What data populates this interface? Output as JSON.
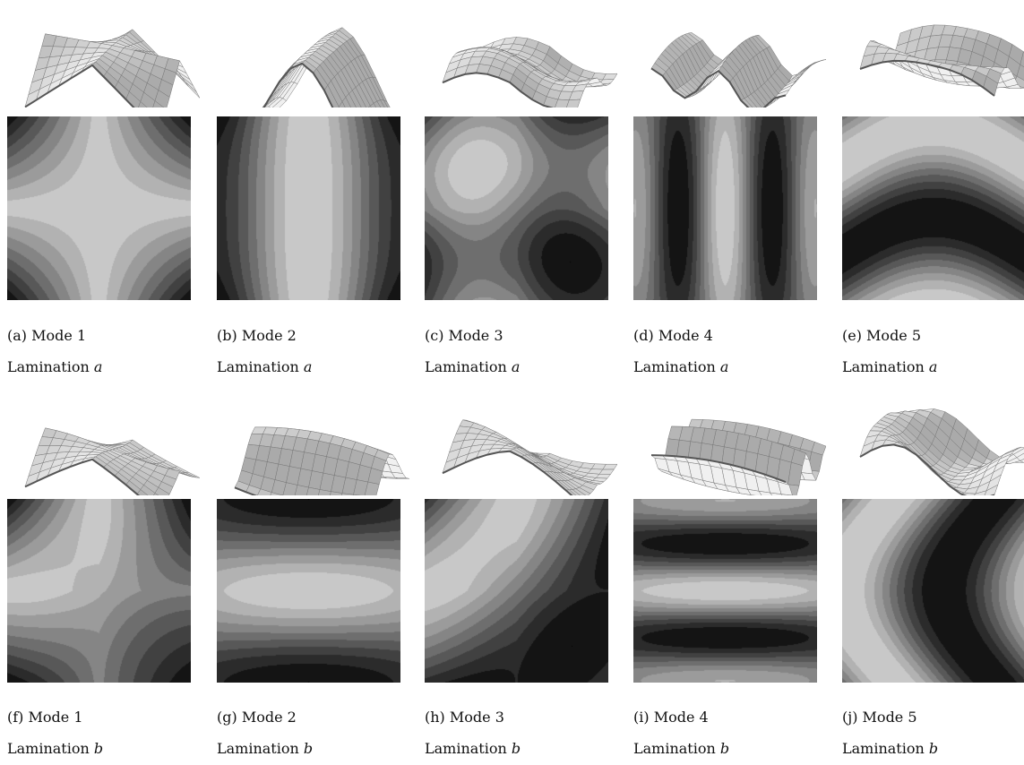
{
  "figure": {
    "rows": [
      {
        "lamination_var": "a",
        "panels": [
          {
            "label": "(a)",
            "mode": "Mode 1"
          },
          {
            "label": "(b)",
            "mode": "Mode 2"
          },
          {
            "label": "(c)",
            "mode": "Mode 3"
          },
          {
            "label": "(d)",
            "mode": "Mode 4"
          },
          {
            "label": "(e)",
            "mode": "Mode 5"
          }
        ]
      },
      {
        "lamination_var": "b",
        "panels": [
          {
            "label": "(f)",
            "mode": "Mode 1"
          },
          {
            "label": "(g)",
            "mode": "Mode 2"
          },
          {
            "label": "(h)",
            "mode": "Mode 3"
          },
          {
            "label": "(i)",
            "mode": "Mode 4"
          },
          {
            "label": "(j)",
            "mode": "Mode 5"
          }
        ]
      }
    ],
    "lamination_word": "Lamination"
  }
}
